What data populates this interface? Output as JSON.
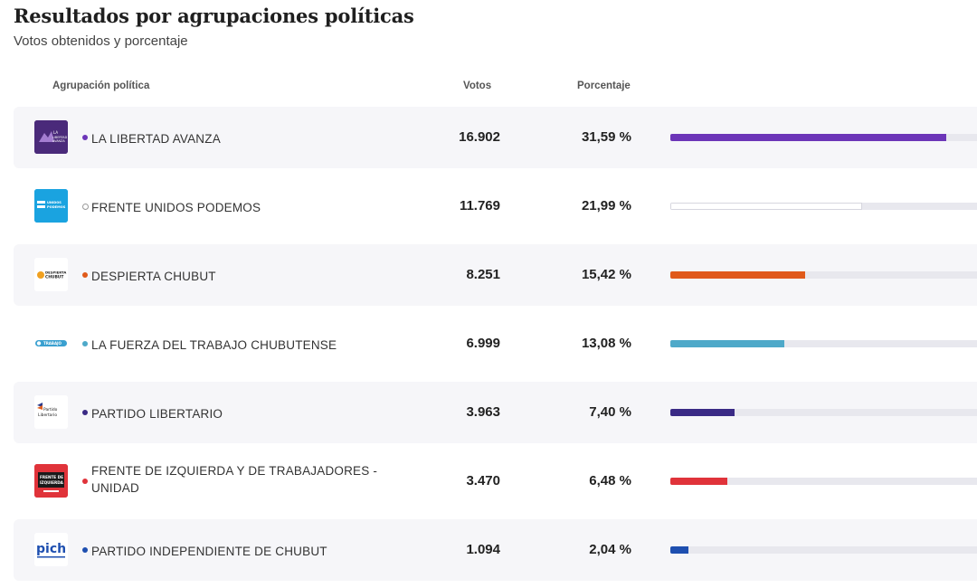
{
  "header": {
    "title": "Resultados por agrupaciones políticas",
    "subtitle": "Votos obtenidos y porcentaje"
  },
  "table": {
    "columns": {
      "party": "Agrupación política",
      "votes": "Votos",
      "percentage": "Porcentaje"
    },
    "rows": [
      {
        "name": "LA LIBERTAD AVANZA",
        "votes": "16.902",
        "percentage": "31,59 %",
        "share": 0.3159,
        "color": "#6c35b8",
        "logo_icon": "la-libertad-avanza-logo",
        "logo_text": "LA LIBERTAD AVANZA"
      },
      {
        "name": "FRENTE UNIDOS PODEMOS",
        "votes": "11.769",
        "percentage": "21,99 %",
        "share": 0.2199,
        "color": "#ffffff",
        "logo_icon": "frente-unidos-podemos-logo",
        "logo_text": "UNIDOS PODEMOS"
      },
      {
        "name": "DESPIERTA CHUBUT",
        "votes": "8.251",
        "percentage": "15,42 %",
        "share": 0.1542,
        "color": "#e05a1a",
        "logo_icon": "despierta-chubut-logo",
        "logo_text": "DESPIERTA CHUBUT"
      },
      {
        "name": "LA FUERZA DEL TRABAJO CHUBUTENSE",
        "votes": "6.999",
        "percentage": "13,08 %",
        "share": 0.1308,
        "color": "#4ea9c9",
        "logo_icon": "fuerza-del-trabajo-logo",
        "logo_text": "TRABAJO"
      },
      {
        "name": "PARTIDO LIBERTARIO",
        "votes": "3.963",
        "percentage": "7,40 %",
        "share": 0.074,
        "color": "#3a2a85",
        "logo_icon": "partido-libertario-logo",
        "logo_text": "Partido Libertario"
      },
      {
        "name": "FRENTE DE IZQUIERDA Y DE TRABAJADORES - UNIDAD",
        "votes": "3.470",
        "percentage": "6,48 %",
        "share": 0.0648,
        "color": "#e0333a",
        "logo_icon": "frente-de-izquierda-logo",
        "logo_text": "FRENTE DE IZQUIERDA"
      },
      {
        "name": "PARTIDO INDEPENDIENTE DE CHUBUT",
        "votes": "1.094",
        "percentage": "2,04 %",
        "share": 0.0204,
        "color": "#1e4fb0",
        "logo_icon": "pich-logo",
        "logo_text": "pich"
      }
    ]
  }
}
